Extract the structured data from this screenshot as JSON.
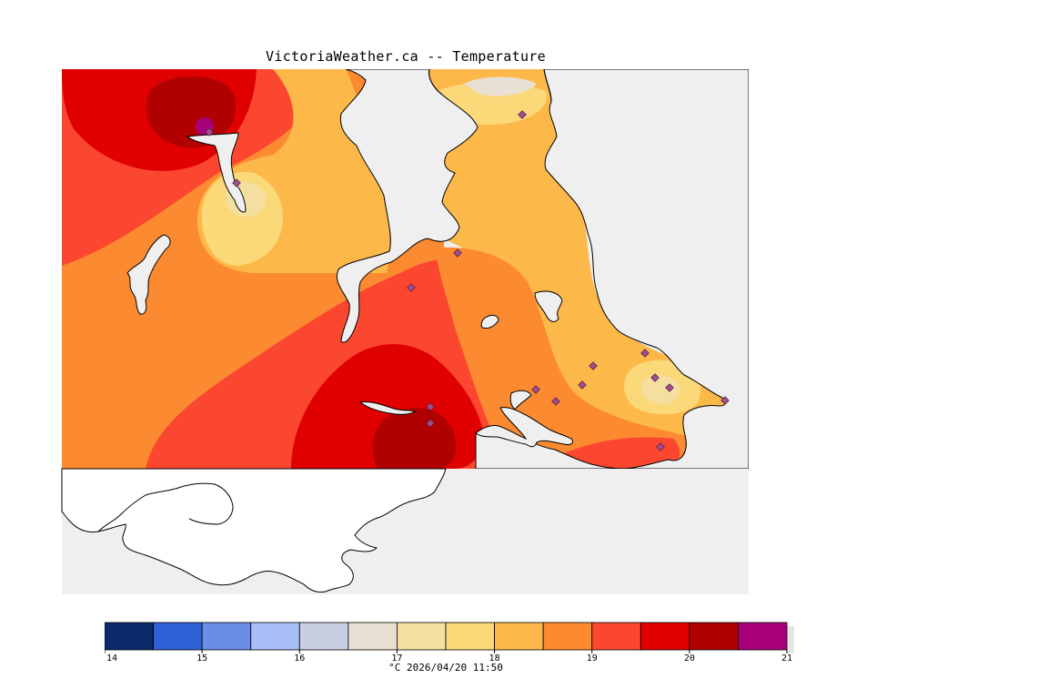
{
  "header": {
    "title": "VictoriaWeather.ca -- Temperature"
  },
  "legend": {
    "unit": "°C",
    "timestamp": "2026/04/20 11:50",
    "tick_labels": [
      "14",
      "15",
      "16",
      "17",
      "18",
      "19",
      "20",
      "21"
    ],
    "bands": [
      {
        "from": 14.0,
        "to": 14.5,
        "color": "#0a2a6b"
      },
      {
        "from": 14.5,
        "to": 15.0,
        "color": "#3060d8"
      },
      {
        "from": 15.0,
        "to": 15.5,
        "color": "#6a8ee8"
      },
      {
        "from": 15.5,
        "to": 16.0,
        "color": "#a8bef8"
      },
      {
        "from": 16.0,
        "to": 16.5,
        "color": "#c9cee2"
      },
      {
        "from": 16.5,
        "to": 17.0,
        "color": "#e8e0d2"
      },
      {
        "from": 17.0,
        "to": 17.5,
        "color": "#f4dfa0"
      },
      {
        "from": 17.5,
        "to": 18.0,
        "color": "#fbd878"
      },
      {
        "from": 18.0,
        "to": 18.5,
        "color": "#fdb84a"
      },
      {
        "from": 18.5,
        "to": 19.0,
        "color": "#fc8a30"
      },
      {
        "from": 19.0,
        "to": 19.5,
        "color": "#fb4630"
      },
      {
        "from": 19.5,
        "to": 20.0,
        "color": "#e00000"
      },
      {
        "from": 20.0,
        "to": 20.5,
        "color": "#b00000"
      },
      {
        "from": 20.5,
        "to": 21.0,
        "color": "#a8007a"
      }
    ]
  },
  "map": {
    "water_color": "#efefef",
    "coast_color": "#000000",
    "station_marker_color": "#a0508a"
  }
}
